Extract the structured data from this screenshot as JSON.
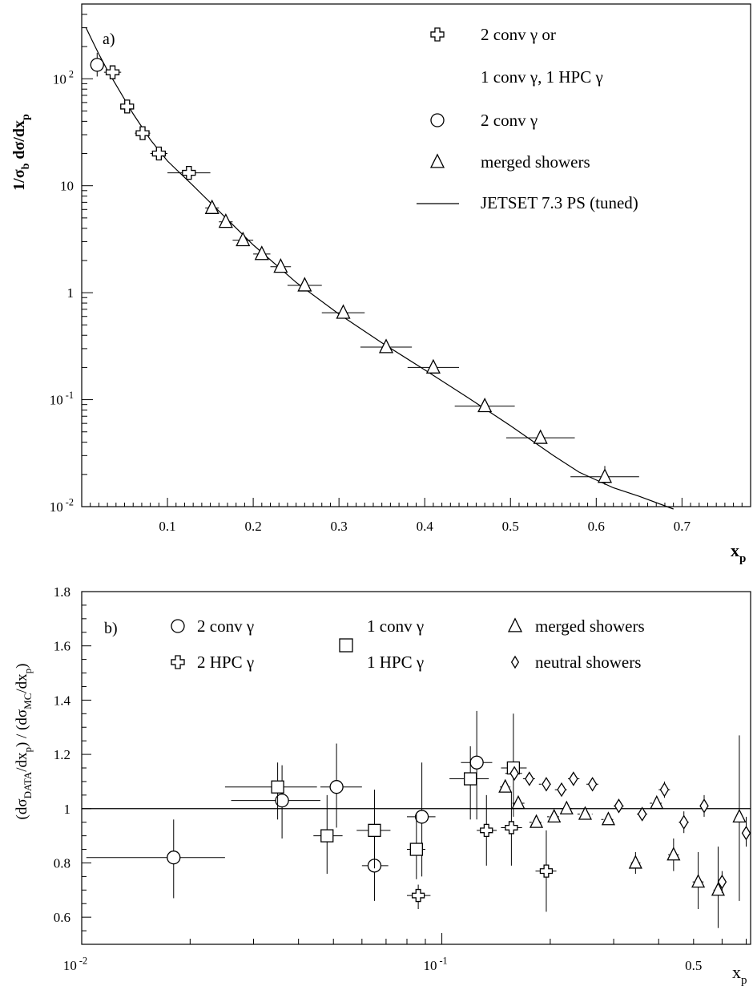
{
  "chart_data": [
    {
      "panel": "a)",
      "type": "scatter",
      "ylabel_main": "1/σ",
      "ylabel_sub1": "b",
      "ylabel_mid": " dσ/dx",
      "ylabel_sub2": "p",
      "xlabel_main": "x",
      "xlabel_sub": "p",
      "xscale": "linear",
      "yscale": "log",
      "xlim": [
        0.0,
        0.78
      ],
      "ylim": [
        0.01,
        500
      ],
      "xticks": [
        0.1,
        0.2,
        0.3,
        0.4,
        0.5,
        0.6,
        0.7
      ],
      "xtick_labels": [
        "0.1",
        "0.2",
        "0.3",
        "0.4",
        "0.5",
        "0.6",
        "0.7"
      ],
      "yticks": [
        {
          "value": 100,
          "base": "10",
          "exp": "2"
        },
        {
          "value": 10,
          "base": "10",
          "exp": ""
        },
        {
          "value": 1,
          "base": "1",
          "exp": ""
        },
        {
          "value": 0.1,
          "base": "10",
          "exp": "-1"
        },
        {
          "value": 0.01,
          "base": "10",
          "exp": "-2"
        }
      ],
      "legend": [
        {
          "marker": "cross",
          "label": "2 conv γ or"
        },
        {
          "marker": "none",
          "label": "1 conv γ, 1 HPC γ"
        },
        {
          "marker": "circle",
          "label": "2 conv γ"
        },
        {
          "marker": "triangle",
          "label": "merged showers"
        },
        {
          "marker": "line",
          "label": "JETSET 7.3 PS (tuned)"
        }
      ],
      "series": [
        {
          "marker": "circle",
          "points": [
            {
              "x": 0.018,
              "y": 135,
              "xerr": 0.004,
              "ylo": 105,
              "yhi": 175
            }
          ]
        },
        {
          "marker": "cross",
          "points": [
            {
              "x": 0.036,
              "y": 115,
              "xerr": 0.01
            },
            {
              "x": 0.053,
              "y": 55,
              "xerr": 0.007
            },
            {
              "x": 0.071,
              "y": 31,
              "xerr": 0.009
            },
            {
              "x": 0.09,
              "y": 20,
              "xerr": 0.01
            },
            {
              "x": 0.125,
              "y": 13.2,
              "xerr": 0.025
            }
          ]
        },
        {
          "marker": "triangle",
          "points": [
            {
              "x": 0.152,
              "y": 6.2,
              "xerr": 0.008
            },
            {
              "x": 0.168,
              "y": 4.6,
              "xerr": 0.008
            },
            {
              "x": 0.188,
              "y": 3.1,
              "xerr": 0.012
            },
            {
              "x": 0.21,
              "y": 2.3,
              "xerr": 0.01
            },
            {
              "x": 0.232,
              "y": 1.75,
              "xerr": 0.012
            },
            {
              "x": 0.26,
              "y": 1.17,
              "xerr": 0.02
            },
            {
              "x": 0.305,
              "y": 0.65,
              "xerr": 0.025
            },
            {
              "x": 0.355,
              "y": 0.31,
              "xerr": 0.03
            },
            {
              "x": 0.41,
              "y": 0.2,
              "xerr": 0.03
            },
            {
              "x": 0.47,
              "y": 0.087,
              "xerr": 0.035
            },
            {
              "x": 0.535,
              "y": 0.044,
              "xerr": 0.04,
              "ylo": 0.039,
              "yhi": 0.05
            },
            {
              "x": 0.61,
              "y": 0.019,
              "xerr": 0.04,
              "ylo": 0.016,
              "yhi": 0.024
            }
          ]
        }
      ],
      "curve": {
        "label": "JETSET 7.3 PS (tuned)",
        "x": [
          0.005,
          0.012,
          0.02,
          0.03,
          0.045,
          0.06,
          0.08,
          0.1,
          0.13,
          0.16,
          0.2,
          0.25,
          0.3,
          0.35,
          0.4,
          0.45,
          0.5,
          0.55,
          0.58,
          0.62,
          0.65,
          0.69
        ],
        "y": [
          300,
          230,
          170,
          120,
          75,
          47,
          27,
          17,
          10,
          5.8,
          2.8,
          1.25,
          0.63,
          0.34,
          0.19,
          0.105,
          0.057,
          0.03,
          0.021,
          0.015,
          0.0125,
          0.0095
        ]
      }
    },
    {
      "panel": "b)",
      "type": "scatter",
      "ylabel_parts": [
        {
          "t": "(dσ",
          "sub": "DATA"
        },
        {
          "t": "/dx",
          "sub": "p"
        },
        {
          "t": ") / (dσ",
          "sub": "MC"
        },
        {
          "t": "/dx",
          "sub": "p"
        },
        {
          "t": ")",
          "sub": ""
        }
      ],
      "xlabel_main": "x",
      "xlabel_sub": "p",
      "xscale": "log",
      "yscale": "linear",
      "xlim": [
        0.01,
        0.72
      ],
      "ylim": [
        0.5,
        1.8
      ],
      "reference_line": 1.0,
      "xticks": [
        {
          "value": 0.01,
          "base": "10",
          "exp": "-2",
          "style": "serif"
        },
        {
          "value": 0.1,
          "base": "10",
          "exp": "-1",
          "style": "serif"
        },
        {
          "value": 0.5,
          "base": "0.5",
          "exp": "",
          "style": "sans"
        }
      ],
      "yticks": [
        0.6,
        0.8,
        1,
        1.2,
        1.4,
        1.6,
        1.8
      ],
      "ytick_labels": [
        "0.6",
        "0.8",
        "1",
        "1.2",
        "1.4",
        "1.6",
        "1.8"
      ],
      "legend": [
        {
          "marker": "circle",
          "label": "2 conv γ",
          "col": 0,
          "row": 0
        },
        {
          "marker": "cross",
          "label": "2 HPC γ",
          "col": 0,
          "row": 1
        },
        {
          "marker": "square",
          "label": "1 conv γ",
          "col": 1,
          "row": 0
        },
        {
          "marker": "none",
          "label": "1 HPC γ",
          "col": 1,
          "row": 1
        },
        {
          "marker": "triangle",
          "label": "merged showers",
          "col": 2,
          "row": 0
        },
        {
          "marker": "diamond",
          "label": "neutral showers",
          "col": 2,
          "row": 1
        }
      ],
      "series": [
        {
          "marker": "circle",
          "points": [
            {
              "x": 0.018,
              "y": 0.82,
              "xlo": 0.0103,
              "xhi": 0.025,
              "ylo": 0.67,
              "yhi": 0.96
            },
            {
              "x": 0.036,
              "y": 1.03,
              "xlo": 0.026,
              "xhi": 0.046,
              "ylo": 0.89,
              "yhi": 1.16
            },
            {
              "x": 0.051,
              "y": 1.08,
              "xlo": 0.046,
              "xhi": 0.06,
              "ylo": 0.93,
              "yhi": 1.24
            },
            {
              "x": 0.065,
              "y": 0.79,
              "xlo": 0.06,
              "xhi": 0.071,
              "ylo": 0.66,
              "yhi": 0.92
            },
            {
              "x": 0.088,
              "y": 0.97,
              "xlo": 0.08,
              "xhi": 0.096,
              "ylo": 0.75,
              "yhi": 1.17
            },
            {
              "x": 0.125,
              "y": 1.17,
              "xlo": 0.113,
              "xhi": 0.138,
              "ylo": 0.96,
              "yhi": 1.36
            }
          ]
        },
        {
          "marker": "square",
          "points": [
            {
              "x": 0.035,
              "y": 1.08,
              "xlo": 0.025,
              "xhi": 0.045,
              "ylo": 0.96,
              "yhi": 1.17
            },
            {
              "x": 0.048,
              "y": 0.9,
              "xlo": 0.044,
              "xhi": 0.053,
              "ylo": 0.76,
              "yhi": 1.05
            },
            {
              "x": 0.065,
              "y": 0.92,
              "xlo": 0.058,
              "xhi": 0.072,
              "ylo": 0.78,
              "yhi": 1.07
            },
            {
              "x": 0.085,
              "y": 0.85,
              "xlo": 0.08,
              "xhi": 0.09,
              "ylo": 0.74,
              "yhi": 0.98
            },
            {
              "x": 0.12,
              "y": 1.11,
              "xlo": 0.105,
              "xhi": 0.135,
              "ylo": 0.96,
              "yhi": 1.23
            },
            {
              "x": 0.158,
              "y": 1.15,
              "xlo": 0.146,
              "xhi": 0.172,
              "ylo": 0.97,
              "yhi": 1.35
            }
          ]
        },
        {
          "marker": "cross",
          "points": [
            {
              "x": 0.086,
              "y": 0.68,
              "xlo": 0.08,
              "xhi": 0.093,
              "ylo": 0.63,
              "yhi": 0.72
            },
            {
              "x": 0.133,
              "y": 0.92,
              "xlo": 0.125,
              "xhi": 0.142,
              "ylo": 0.79,
              "yhi": 1.05
            },
            {
              "x": 0.156,
              "y": 0.93,
              "xlo": 0.146,
              "xhi": 0.167,
              "ylo": 0.79,
              "yhi": 1.06
            },
            {
              "x": 0.195,
              "y": 0.77,
              "xlo": 0.182,
              "xhi": 0.208,
              "ylo": 0.62,
              "yhi": 0.92
            }
          ]
        },
        {
          "marker": "triangle",
          "points": [
            {
              "x": 0.15,
              "y": 1.08,
              "xlo": 0.145,
              "xhi": 0.155
            },
            {
              "x": 0.163,
              "y": 1.02,
              "xlo": 0.157,
              "xhi": 0.17
            },
            {
              "x": 0.183,
              "y": 0.95,
              "xlo": 0.175,
              "xhi": 0.192
            },
            {
              "x": 0.205,
              "y": 0.97,
              "xlo": 0.196,
              "xhi": 0.214
            },
            {
              "x": 0.222,
              "y": 1.0,
              "xlo": 0.213,
              "xhi": 0.232
            },
            {
              "x": 0.25,
              "y": 0.98,
              "xlo": 0.238,
              "xhi": 0.262
            },
            {
              "x": 0.29,
              "y": 0.96,
              "xlo": 0.277,
              "xhi": 0.303
            },
            {
              "x": 0.345,
              "y": 0.8,
              "xlo": 0.335,
              "xhi": 0.356,
              "ylo": 0.76,
              "yhi": 0.84
            },
            {
              "x": 0.395,
              "y": 1.02,
              "xlo": 0.378,
              "xhi": 0.412
            },
            {
              "x": 0.44,
              "y": 0.83,
              "xlo": 0.425,
              "xhi": 0.455,
              "ylo": 0.77,
              "yhi": 0.89
            },
            {
              "x": 0.515,
              "y": 0.73,
              "xlo": 0.497,
              "xhi": 0.533,
              "ylo": 0.63,
              "yhi": 0.84
            },
            {
              "x": 0.585,
              "y": 0.7,
              "xlo": 0.568,
              "xhi": 0.602,
              "ylo": 0.56,
              "yhi": 0.86
            },
            {
              "x": 0.67,
              "y": 0.97,
              "xlo": 0.655,
              "xhi": 0.685,
              "ylo": 0.66,
              "yhi": 1.27
            }
          ]
        },
        {
          "marker": "diamond",
          "points": [
            {
              "x": 0.159,
              "y": 1.13,
              "xlo": 0.15,
              "xhi": 0.168
            },
            {
              "x": 0.175,
              "y": 1.11,
              "xlo": 0.168,
              "xhi": 0.183
            },
            {
              "x": 0.195,
              "y": 1.09,
              "xlo": 0.186,
              "xhi": 0.204
            },
            {
              "x": 0.215,
              "y": 1.07,
              "xlo": 0.206,
              "xhi": 0.224
            },
            {
              "x": 0.232,
              "y": 1.11,
              "xlo": 0.224,
              "xhi": 0.241
            },
            {
              "x": 0.262,
              "y": 1.09,
              "xlo": 0.252,
              "xhi": 0.272
            },
            {
              "x": 0.31,
              "y": 1.01,
              "xlo": 0.3,
              "xhi": 0.32
            },
            {
              "x": 0.36,
              "y": 0.98,
              "xlo": 0.348,
              "xhi": 0.372
            },
            {
              "x": 0.415,
              "y": 1.07,
              "xlo": 0.4,
              "xhi": 0.43,
              "ylo": 1.04,
              "yhi": 1.1
            },
            {
              "x": 0.47,
              "y": 0.95,
              "xlo": 0.455,
              "xhi": 0.485,
              "ylo": 0.91,
              "yhi": 0.99
            },
            {
              "x": 0.535,
              "y": 1.01,
              "xlo": 0.522,
              "xhi": 0.548,
              "ylo": 0.97,
              "yhi": 1.05
            },
            {
              "x": 0.6,
              "y": 0.73,
              "xlo": 0.588,
              "xhi": 0.612,
              "ylo": 0.69,
              "yhi": 0.77
            },
            {
              "x": 0.7,
              "y": 0.91,
              "xlo": 0.688,
              "xhi": 0.712,
              "ylo": 0.86,
              "yhi": 0.97
            }
          ]
        }
      ]
    }
  ]
}
